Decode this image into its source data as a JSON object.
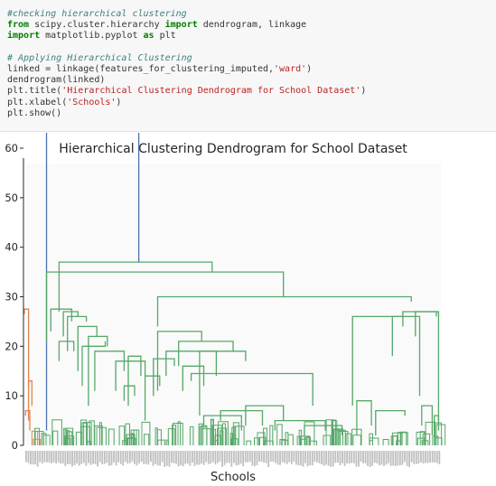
{
  "code_cell": {
    "lines": [
      [
        {
          "t": "#checking hierarchical clustering",
          "c": "cm"
        }
      ],
      [
        {
          "t": "from",
          "c": "kw"
        },
        {
          "t": " scipy.cluster.hierarchy ",
          "c": "pl"
        },
        {
          "t": "import",
          "c": "kw"
        },
        {
          "t": " dendrogram, linkage",
          "c": "pl"
        }
      ],
      [
        {
          "t": "import",
          "c": "kw"
        },
        {
          "t": " matplotlib.pyplot ",
          "c": "pl"
        },
        {
          "t": "as",
          "c": "kw"
        },
        {
          "t": " plt",
          "c": "pl"
        }
      ],
      [
        {
          "t": "",
          "c": "pl"
        }
      ],
      [
        {
          "t": "# Applying Hierarchical Clustering",
          "c": "cm"
        }
      ],
      [
        {
          "t": "linked = linkage(features_for_clustering_imputed,",
          "c": "pl"
        },
        {
          "t": "'ward'",
          "c": "st"
        },
        {
          "t": ")",
          "c": "pl"
        }
      ],
      [
        {
          "t": "dendrogram(linked)",
          "c": "pl"
        }
      ],
      [
        {
          "t": "plt.title(",
          "c": "pl"
        },
        {
          "t": "'Hierarchical Clustering Dendrogram for School Dataset'",
          "c": "st"
        },
        {
          "t": ")",
          "c": "pl"
        }
      ],
      [
        {
          "t": "plt.xlabel(",
          "c": "pl"
        },
        {
          "t": "'Schools'",
          "c": "st"
        },
        {
          "t": ")",
          "c": "pl"
        }
      ],
      [
        {
          "t": "plt.show()",
          "c": "pl"
        }
      ]
    ]
  },
  "chart_data": {
    "type": "dendrogram",
    "title": "Hierarchical Clustering Dendrogram for School Dataset",
    "xlabel": "Schools",
    "ylabel": "",
    "ylim": [
      0,
      58
    ],
    "y_ticks": [
      0,
      10,
      20,
      30,
      40,
      50,
      60
    ],
    "y_tick_labels": [
      "0",
      "10",
      "20",
      "30",
      "40",
      "50",
      "60"
    ],
    "x_tick_labels_visible": false,
    "grid": false,
    "colors": {
      "root": "#4c72b0",
      "cluster_1": "#dd8452",
      "cluster_2": "#55a868",
      "axis": "#262626"
    },
    "links": [
      {
        "x": [
          0.055,
          0.055,
          0.275,
          0.275
        ],
        "y": [
          3,
          65,
          65,
          37
        ],
        "color": "root"
      },
      {
        "x": [
          0.002,
          0.002,
          0.012,
          0.012
        ],
        "y": [
          26.5,
          27.5,
          27.5,
          5
        ],
        "color": "cluster_1"
      },
      {
        "x": [
          0.012,
          0.012,
          0.02,
          0.02
        ],
        "y": [
          11.5,
          13,
          13,
          8
        ],
        "color": "cluster_1"
      },
      {
        "x": [
          0.005,
          0.005,
          0.015,
          0.015
        ],
        "y": [
          6,
          7,
          7,
          3
        ],
        "color": "cluster_1"
      },
      {
        "x": [
          0.085,
          0.085,
          0.45,
          0.45
        ],
        "y": [
          27,
          37,
          37,
          35
        ],
        "color": "cluster_2"
      },
      {
        "x": [
          0.055,
          0.055,
          0.62,
          0.62
        ],
        "y": [
          21,
          35,
          35,
          30
        ],
        "color": "cluster_2"
      },
      {
        "x": [
          0.32,
          0.32,
          0.925,
          0.925
        ],
        "y": [
          24,
          30,
          30,
          29
        ],
        "color": "cluster_2"
      },
      {
        "x": [
          0.065,
          0.065,
          0.115,
          0.115
        ],
        "y": [
          23,
          27.5,
          27.5,
          25
        ],
        "color": "cluster_2"
      },
      {
        "x": [
          0.095,
          0.095,
          0.13,
          0.13
        ],
        "y": [
          22,
          27,
          27,
          26
        ],
        "color": "cluster_2"
      },
      {
        "x": [
          0.105,
          0.105,
          0.15,
          0.15
        ],
        "y": [
          19,
          26,
          26,
          25
        ],
        "color": "cluster_2"
      },
      {
        "x": [
          0.13,
          0.13,
          0.175,
          0.175
        ],
        "y": [
          15,
          24,
          24,
          22
        ],
        "color": "cluster_2"
      },
      {
        "x": [
          0.155,
          0.155,
          0.2,
          0.2
        ],
        "y": [
          8,
          22,
          22,
          20
        ],
        "color": "cluster_2"
      },
      {
        "x": [
          0.14,
          0.14,
          0.195,
          0.195
        ],
        "y": [
          12,
          20,
          20,
          21
        ],
        "color": "cluster_2"
      },
      {
        "x": [
          0.22,
          0.22,
          0.29,
          0.29
        ],
        "y": [
          11,
          17,
          17,
          14
        ],
        "color": "cluster_2"
      },
      {
        "x": [
          0.29,
          0.29,
          0.325,
          0.325
        ],
        "y": [
          5,
          14,
          14,
          12
        ],
        "color": "cluster_2"
      },
      {
        "x": [
          0.085,
          0.085,
          0.12,
          0.12
        ],
        "y": [
          17,
          21,
          21,
          19
        ],
        "color": "cluster_2"
      },
      {
        "x": [
          0.17,
          0.17,
          0.24,
          0.24
        ],
        "y": [
          11,
          19,
          19,
          15
        ],
        "color": "cluster_2"
      },
      {
        "x": [
          0.24,
          0.24,
          0.265,
          0.265
        ],
        "y": [
          9,
          12,
          12,
          10
        ],
        "color": "cluster_2"
      },
      {
        "x": [
          0.25,
          0.25,
          0.28,
          0.28
        ],
        "y": [
          8,
          18,
          18,
          14
        ],
        "color": "cluster_2"
      },
      {
        "x": [
          0.31,
          0.31,
          0.36,
          0.36
        ],
        "y": [
          10,
          17.5,
          17.5,
          16
        ],
        "color": "cluster_2"
      },
      {
        "x": [
          0.32,
          0.32,
          0.425,
          0.425
        ],
        "y": [
          11,
          23,
          23,
          21
        ],
        "color": "cluster_2"
      },
      {
        "x": [
          0.37,
          0.37,
          0.5,
          0.5
        ],
        "y": [
          16,
          21,
          21,
          19
        ],
        "color": "cluster_2"
      },
      {
        "x": [
          0.38,
          0.38,
          0.43,
          0.43
        ],
        "y": [
          11,
          16,
          16,
          12
        ],
        "color": "cluster_2"
      },
      {
        "x": [
          0.42,
          0.42,
          0.53,
          0.53
        ],
        "y": [
          6,
          19,
          19,
          17
        ],
        "color": "cluster_2"
      },
      {
        "x": [
          0.34,
          0.34,
          0.46,
          0.46
        ],
        "y": [
          14,
          19,
          19,
          14
        ],
        "color": "cluster_2"
      },
      {
        "x": [
          0.4,
          0.4,
          0.69,
          0.69
        ],
        "y": [
          13,
          14.5,
          14.5,
          8
        ],
        "color": "cluster_2"
      },
      {
        "x": [
          0.43,
          0.43,
          0.52,
          0.52
        ],
        "y": [
          4,
          6,
          6,
          3
        ],
        "color": "cluster_2"
      },
      {
        "x": [
          0.47,
          0.47,
          0.57,
          0.57
        ],
        "y": [
          5,
          7,
          7,
          4
        ],
        "color": "cluster_2"
      },
      {
        "x": [
          0.53,
          0.53,
          0.62,
          0.62
        ],
        "y": [
          4,
          8,
          8,
          5
        ],
        "color": "cluster_2"
      },
      {
        "x": [
          0.6,
          0.6,
          0.72,
          0.72
        ],
        "y": [
          3,
          5,
          5,
          3
        ],
        "color": "cluster_2"
      },
      {
        "x": [
          0.67,
          0.67,
          0.76,
          0.76
        ],
        "y": [
          2,
          4,
          4,
          2
        ],
        "color": "cluster_2"
      },
      {
        "x": [
          0.785,
          0.785,
          0.905,
          0.905
        ],
        "y": [
          8,
          26,
          26,
          26
        ],
        "color": "cluster_2"
      },
      {
        "x": [
          0.84,
          0.84,
          0.91,
          0.91
        ],
        "y": [
          2,
          7,
          7,
          6
        ],
        "color": "cluster_2"
      },
      {
        "x": [
          0.88,
          0.88,
          0.945,
          0.945
        ],
        "y": [
          18,
          26,
          26,
          10
        ],
        "color": "cluster_2"
      },
      {
        "x": [
          0.905,
          0.905,
          0.985,
          0.985
        ],
        "y": [
          24,
          27,
          27,
          26
        ],
        "color": "cluster_2"
      },
      {
        "x": [
          0.935,
          0.935,
          0.99,
          0.99
        ],
        "y": [
          22,
          27,
          27,
          5
        ],
        "color": "cluster_2"
      },
      {
        "x": [
          0.795,
          0.795,
          0.83,
          0.83
        ],
        "y": [
          2,
          9,
          9,
          4
        ],
        "color": "cluster_2"
      },
      {
        "x": [
          0.95,
          0.95,
          0.975,
          0.975
        ],
        "y": [
          4,
          8,
          8,
          2
        ],
        "color": "cluster_2"
      },
      {
        "x": [
          0.98,
          0.98,
          0.99,
          0.99
        ],
        "y": [
          2,
          6,
          6,
          3
        ],
        "color": "cluster_2"
      }
    ]
  }
}
